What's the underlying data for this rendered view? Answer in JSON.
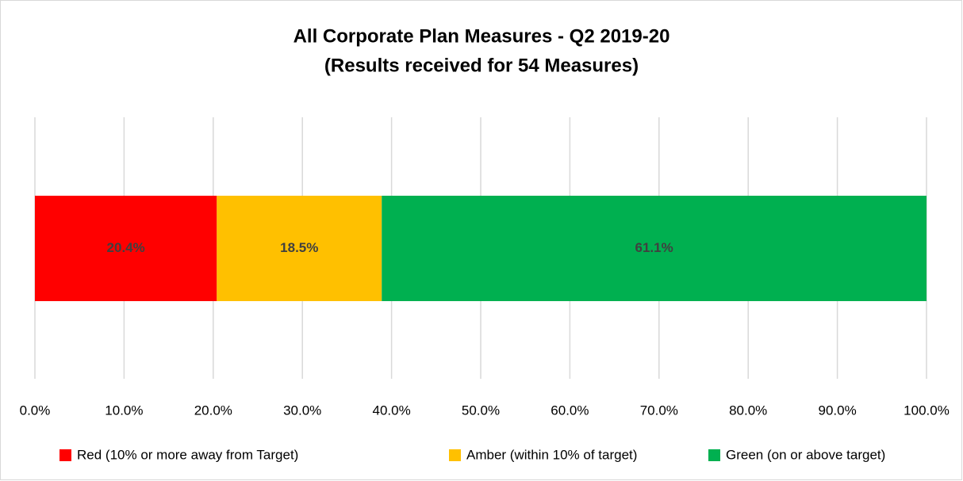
{
  "chart_data": {
    "type": "stacked_bar_horizontal",
    "title": "All Corporate Plan Measures - Q2 2019-20",
    "subtitle": "(Results received for 54 Measures)",
    "series": [
      {
        "name": "Red (10% or more away from Target)",
        "color": "#ff0000",
        "values": [
          20.4
        ],
        "value_labels": [
          "20.4%"
        ]
      },
      {
        "name": "Amber (within 10% of target)",
        "color": "#ffc000",
        "values": [
          18.5
        ],
        "value_labels": [
          "18.5%"
        ]
      },
      {
        "name": "Green (on or above target)",
        "color": "#00b050",
        "values": [
          61.1
        ],
        "value_labels": [
          "61.1%"
        ]
      }
    ],
    "xlim": [
      0,
      100
    ],
    "xticks": [
      {
        "value": 0,
        "label": "0.0%"
      },
      {
        "value": 10,
        "label": "10.0%"
      },
      {
        "value": 20,
        "label": "20.0%"
      },
      {
        "value": 30,
        "label": "30.0%"
      },
      {
        "value": 40,
        "label": "40.0%"
      },
      {
        "value": 50,
        "label": "50.0%"
      },
      {
        "value": 60,
        "label": "60.0%"
      },
      {
        "value": 70,
        "label": "70.0%"
      },
      {
        "value": 80,
        "label": "80.0%"
      },
      {
        "value": 90,
        "label": "90.0%"
      },
      {
        "value": 100,
        "label": "100.0%"
      }
    ],
    "grid": true,
    "legend": "bottom"
  }
}
